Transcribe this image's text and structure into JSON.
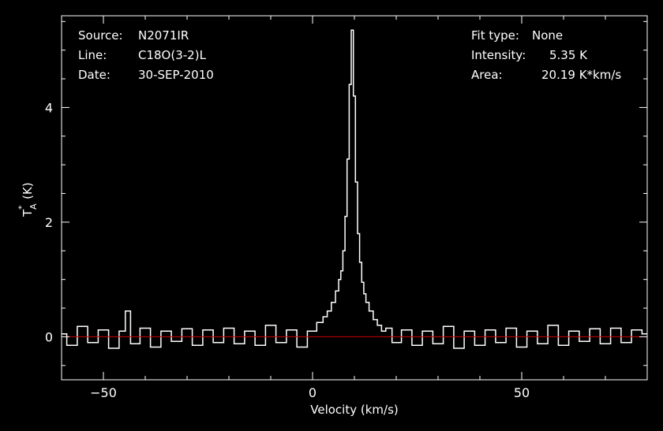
{
  "colors": {
    "background": "#000000",
    "foreground": "#ffffff",
    "baseline": "#cc0000"
  },
  "info": {
    "source_label": "Source:",
    "source_value": "N2071IR",
    "line_label": "Line:",
    "line_value": "C18O(3-2)L",
    "date_label": "Date:",
    "date_value": "30-SEP-2010",
    "fit_label": "Fit type:",
    "fit_value": "None",
    "intensity_label": "Intensity:",
    "intensity_value": "5.35 K",
    "area_label": "Area:",
    "area_value": "20.19 K*km/s"
  },
  "chart_data": {
    "type": "line",
    "title": "",
    "xlabel": "Velocity (km/s)",
    "ylabel_main": "T",
    "ylabel_sup": "*",
    "ylabel_sub": "A",
    "ylabel_unit": "(K)",
    "xlim": [
      -60,
      80
    ],
    "ylim": [
      -0.75,
      5.6
    ],
    "grid": false,
    "xticks": [
      {
        "value": -50,
        "label": "−50"
      },
      {
        "value": 0,
        "label": "0"
      },
      {
        "value": 50,
        "label": "50"
      }
    ],
    "yticks": [
      {
        "value": 0,
        "label": "0"
      },
      {
        "value": 2,
        "label": "2"
      },
      {
        "value": 4,
        "label": "4"
      }
    ],
    "baseline_value": 0,
    "series": [
      {
        "style": "histogram",
        "x": [
          -60,
          -57.5,
          -55,
          -52.5,
          -50,
          -47.5,
          -45,
          -44.5,
          -42.5,
          -40,
          -37.5,
          -35,
          -32.5,
          -30,
          -27.5,
          -25,
          -22.5,
          -20,
          -17.5,
          -15,
          -12.5,
          -10,
          -7.5,
          -5,
          -2.5,
          0,
          2,
          3,
          4,
          5,
          6,
          6.5,
          7,
          7.5,
          8,
          8.5,
          9,
          9.5,
          10,
          10.5,
          11,
          11.5,
          12,
          12.5,
          13,
          14,
          15,
          16,
          17,
          18,
          20,
          22.5,
          25,
          27.5,
          30,
          32.5,
          35,
          37.5,
          40,
          42.5,
          45,
          47.5,
          50,
          52.5,
          55,
          57.5,
          60,
          62.5,
          65,
          67.5,
          70,
          72.5,
          75,
          77.5,
          80
        ],
        "values": [
          0.05,
          -0.15,
          0.18,
          -0.1,
          0.12,
          -0.2,
          0.1,
          0.45,
          -0.12,
          0.15,
          -0.18,
          0.1,
          -0.08,
          0.14,
          -0.15,
          0.12,
          -0.1,
          0.15,
          -0.12,
          0.1,
          -0.15,
          0.2,
          -0.1,
          0.12,
          -0.18,
          0.1,
          0.25,
          0.35,
          0.45,
          0.6,
          0.8,
          1.0,
          1.15,
          1.5,
          2.1,
          3.1,
          4.4,
          5.35,
          4.2,
          2.7,
          1.8,
          1.3,
          0.95,
          0.75,
          0.6,
          0.45,
          0.3,
          0.2,
          0.1,
          0.15,
          -0.1,
          0.12,
          -0.15,
          0.1,
          -0.12,
          0.18,
          -0.2,
          0.1,
          -0.15,
          0.12,
          -0.1,
          0.15,
          -0.18,
          0.1,
          -0.12,
          0.2,
          -0.15,
          0.1,
          -0.08,
          0.14,
          -0.12,
          0.15,
          -0.1,
          0.12,
          0.05
        ]
      }
    ]
  }
}
